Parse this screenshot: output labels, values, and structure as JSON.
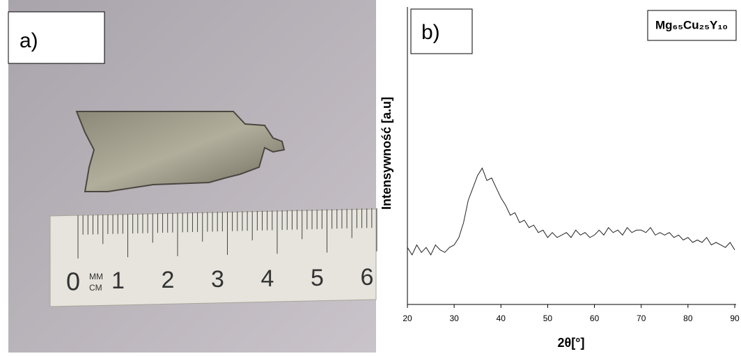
{
  "panel_a": {
    "label": "a)",
    "ruler": {
      "zero": "0",
      "unit_top": "MM",
      "unit_bottom": "CM",
      "numbers": [
        "1",
        "2",
        "3",
        "4",
        "5",
        "6"
      ]
    }
  },
  "chart_data": {
    "type": "line",
    "panel_label": "b)",
    "x_label": "2θ[°]",
    "y_label": "Intensywność [a.u]",
    "x": [
      20,
      21,
      22,
      23,
      24,
      25,
      26,
      27,
      28,
      29,
      30,
      31,
      32,
      33,
      34,
      35,
      36,
      37,
      38,
      39,
      40,
      41,
      42,
      43,
      44,
      45,
      46,
      47,
      48,
      49,
      50,
      51,
      52,
      53,
      54,
      55,
      56,
      57,
      58,
      59,
      60,
      61,
      62,
      63,
      64,
      65,
      66,
      67,
      68,
      69,
      70,
      71,
      72,
      73,
      74,
      75,
      76,
      77,
      78,
      79,
      80,
      81,
      82,
      83,
      84,
      85,
      86,
      87,
      88,
      89,
      90
    ],
    "series": [
      {
        "name": "Mg₆₅Cu₂₅Y₁₀",
        "color": "#222222",
        "values": [
          23,
          20,
          24,
          21,
          23,
          20,
          24,
          22,
          21,
          23,
          24,
          27,
          33,
          42,
          47,
          52,
          55,
          50,
          51,
          47,
          43,
          40,
          36,
          37,
          33,
          34,
          31,
          32,
          29,
          30,
          27,
          29,
          27,
          28,
          29,
          27,
          30,
          28,
          29,
          27,
          28,
          30,
          28,
          31,
          29,
          30,
          28,
          31,
          29,
          30,
          30,
          29,
          31,
          28,
          29,
          28,
          29,
          27,
          28,
          26,
          27,
          25,
          26,
          25,
          27,
          24,
          25,
          24,
          23,
          25,
          22
        ]
      }
    ],
    "xlim": [
      20,
      90
    ],
    "xticks": [
      20,
      30,
      40,
      50,
      60,
      70,
      80,
      90
    ],
    "ylim": [
      0,
      120
    ]
  }
}
